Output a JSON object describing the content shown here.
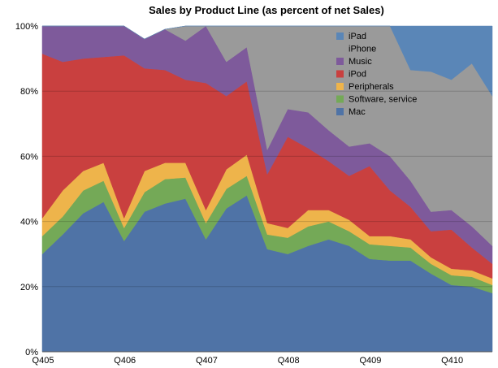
{
  "chart_data": {
    "type": "area",
    "stacked": true,
    "title": "Sales by Product Line (as percent of net Sales)",
    "xlabel": "",
    "ylabel": "",
    "ylim": [
      0,
      100
    ],
    "y_ticks": [
      "0%",
      "20%",
      "40%",
      "60%",
      "80%",
      "100%"
    ],
    "y_tick_values": [
      0,
      20,
      40,
      60,
      80,
      100
    ],
    "x_tick_labels": [
      "Q405",
      "Q406",
      "Q407",
      "Q408",
      "Q409",
      "Q410"
    ],
    "x_tick_indices": [
      0,
      4,
      8,
      12,
      16,
      20
    ],
    "quarters": 23,
    "legend_position": "top-right",
    "grid": "horizontal",
    "series": [
      {
        "name": "Mac",
        "color": "#4f73a6",
        "values": [
          30,
          36,
          42.5,
          46,
          34,
          43,
          45.5,
          47,
          34.5,
          44,
          48,
          31.5,
          30,
          32.5,
          34.5,
          32.5,
          28.5,
          28,
          28,
          24,
          20.5,
          20,
          18
        ]
      },
      {
        "name": "Software, service",
        "color": "#74a957",
        "values": [
          5.5,
          5.5,
          7,
          6.5,
          4,
          6,
          7.5,
          6.5,
          5,
          6,
          6,
          4.5,
          5,
          6,
          5.5,
          4.5,
          4.5,
          4.5,
          4,
          3,
          3,
          3,
          2.5
        ]
      },
      {
        "name": "Peripherals",
        "color": "#eeb44b",
        "values": [
          5.5,
          8,
          6,
          5.5,
          3,
          6.5,
          5,
          4.5,
          4,
          6,
          6.5,
          3.5,
          3,
          5,
          3.5,
          3.5,
          2.5,
          3,
          2.5,
          2,
          2,
          2,
          2
        ]
      },
      {
        "name": "iPod",
        "color": "#c9403f",
        "values": [
          50.5,
          39.5,
          34.5,
          32.5,
          50,
          31.5,
          28.5,
          25.5,
          39,
          22.5,
          22.5,
          15,
          28,
          19,
          15,
          13.5,
          21.5,
          14,
          10,
          8,
          12,
          7,
          4.5
        ]
      },
      {
        "name": "Music",
        "color": "#7e5a9b",
        "values": [
          8.5,
          11,
          10,
          9.5,
          9,
          9,
          12.5,
          12,
          17.5,
          10.5,
          10.5,
          7.5,
          8.5,
          11,
          9.5,
          9,
          7,
          10.5,
          8,
          6,
          6,
          6.5,
          5.5
        ]
      },
      {
        "name": "iPhone",
        "color": "#9a9a9a",
        "values": [
          0,
          0,
          0,
          0,
          0,
          0,
          0,
          4.5,
          0,
          11,
          6.5,
          38,
          25.5,
          26.5,
          32,
          37,
          36,
          40,
          34,
          43,
          40,
          50,
          46
        ]
      },
      {
        "name": "iPad",
        "color": "#5a86b7",
        "values": [
          0,
          0,
          0,
          0,
          0,
          0,
          0,
          0,
          0,
          0,
          0,
          0,
          0,
          0,
          0,
          0,
          0,
          0,
          13.5,
          14,
          16.5,
          11.5,
          21.5
        ]
      }
    ]
  }
}
